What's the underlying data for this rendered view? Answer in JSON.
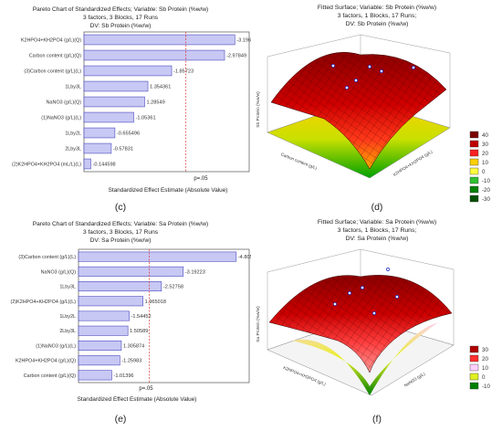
{
  "panels": {
    "c": {
      "title_lines": [
        "Pareto Chart of Standardized Effects; Variable: Sb Protein (%w/w)",
        "3 factors, 3 Blocks, 17 Runs",
        "DV: Sb Protein (%w/w)"
      ],
      "xlabel": "Standardized Effect Estimate (Absolute Value)",
      "p_label": "p=.05",
      "caption": "(c)"
    },
    "d": {
      "title_lines": [
        "Fitted Surface; Variable: Sb Protein (%w/w)",
        "3 factors, 1 Blocks, 17 Runs;",
        "DV: Sb Protein (%w/w)"
      ],
      "zlabel": "Sb Protein (%w/w)",
      "xlabel": "Carbon content (g/L)",
      "ylabel": "K2HPO4+KH2PO4 (g/L)",
      "caption": "(d)"
    },
    "e": {
      "title_lines": [
        "Pareto Chart of Standardized Effects; Variable: Sa Protein (%w/w)",
        "3 factors, 3 Blocks, 17 Runs",
        "DV: Sa Protein (%w/w)"
      ],
      "xlabel": "Standardized Effect Estimate (Absolute Value)",
      "p_label": "p=.05",
      "caption": "(e)"
    },
    "f": {
      "title_lines": [
        "Fitted Surface; Variable: Sa Protein (%w/w)",
        "3 factors, 1 Blocks, 17 Runs;",
        "DV: Sa Protein (%w/w)"
      ],
      "zlabel": "Sa Protein (%w/w)",
      "xlabel": "K2HPO4+KH2PO4 (g/L)",
      "ylabel": "NaNO3 (g/L)",
      "caption": "(f)"
    }
  },
  "chart_data": [
    {
      "type": "bar",
      "orientation": "horizontal",
      "panel": "c",
      "title": "Pareto Chart of Standardized Effects; Variable: Sb Protein (%w/w)",
      "xlabel": "Standardized Effect Estimate (Absolute Value)",
      "categories": [
        "K2HPO4+KH2PO4 (g/L)(Q)",
        "Carbon content (g/L)(Q)",
        "(3)Carbon content (g/L)(L)",
        "1Lby3L",
        "NaNO3 (g/L)(Q)",
        "(1)NaNO3 (g/L)(L)",
        "1Lby2L",
        "2Lby3L",
        "(2)K2HPO4+KH2PO4 (mL/L)(L)"
      ],
      "values": [
        -3.196,
        -2.97849,
        -1.85723,
        1.354361,
        1.28549,
        -1.05361,
        -0.655496,
        -0.57831,
        -0.144598
      ],
      "value_labels": [
        "-3.196",
        "-2.97849",
        "-1.85723",
        "1.354361",
        "1.28549",
        "-1.05361",
        "-0.655496",
        "-0.57831",
        "-0.144598"
      ],
      "reference_line": 2.16,
      "xlim": [
        0,
        3.5
      ]
    },
    {
      "type": "bar",
      "orientation": "horizontal",
      "panel": "e",
      "title": "Pareto Chart of Standardized Effects; Variable: Sa Protein (%w/w)",
      "xlabel": "Standardized Effect Estimate (Absolute Value)",
      "categories": [
        "(3)Carbon content (g/L)(L)",
        "NaNO3 (g/L)(Q)",
        "1Lby3L",
        "(2)K2HPO4+KH2PO4 (g/L)(L)",
        "1Lby2L",
        "2Lby3L",
        "(1)NaNO3 (g/L)(L)",
        "K2HPO4+KH2PO4 (g/L)(Q)",
        "Carbon content (g/L)(Q)"
      ],
      "values": [
        -4.80588,
        -3.19223,
        -2.52758,
        1.965018,
        -1.54452,
        1.50589,
        1.305874,
        -1.25983,
        -1.01396
      ],
      "value_labels": [
        "-4.80588",
        "-3.19223",
        "-2.52758",
        "1.965018",
        "-1.54452",
        "1.50589",
        "1.305874",
        "-1.25983",
        "-1.01396"
      ],
      "reference_line": 2.16,
      "xlim": [
        0,
        5.2
      ]
    },
    {
      "type": "surface",
      "panel": "d",
      "title": "Fitted Surface; Variable: Sb Protein (%w/w)",
      "legend": [
        {
          "label": "40",
          "color": "#7a0000"
        },
        {
          "label": "30",
          "color": "#c00000"
        },
        {
          "label": "20",
          "color": "#ff2020"
        },
        {
          "label": "10",
          "color": "#ffd000"
        },
        {
          "label": "0",
          "color": "#ffff40"
        },
        {
          "label": "-10",
          "color": "#30c030"
        },
        {
          "label": "-20",
          "color": "#008000"
        },
        {
          "label": "-30",
          "color": "#005000"
        }
      ]
    },
    {
      "type": "surface",
      "panel": "f",
      "title": "Fitted Surface; Variable: Sa Protein (%w/w)",
      "legend": [
        {
          "label": "30",
          "color": "#b00000"
        },
        {
          "label": "20",
          "color": "#ff3030"
        },
        {
          "label": "10",
          "color": "#ffd0ff"
        },
        {
          "label": "0",
          "color": "#e0f020"
        },
        {
          "label": "-10",
          "color": "#008000"
        }
      ]
    }
  ]
}
